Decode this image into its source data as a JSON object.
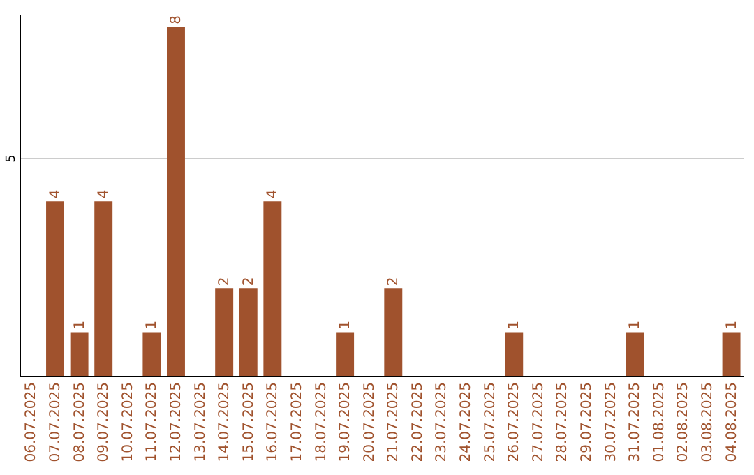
{
  "chart_data": {
    "type": "bar",
    "categories": [
      "06.07.2025",
      "07.07.2025",
      "08.07.2025",
      "09.07.2025",
      "10.07.2025",
      "11.07.2025",
      "12.07.2025",
      "13.07.2025",
      "14.07.2025",
      "15.07.2025",
      "16.07.2025",
      "17.07.2025",
      "18.07.2025",
      "19.07.2025",
      "20.07.2025",
      "21.07.2025",
      "22.07.2025",
      "23.07.2025",
      "24.07.2025",
      "25.07.2025",
      "26.07.2025",
      "27.07.2025",
      "28.07.2025",
      "29.07.2025",
      "30.07.2025",
      "31.07.2025",
      "01.08.2025",
      "02.08.2025",
      "03.08.2025",
      "04.08.2025"
    ],
    "values": [
      0,
      4,
      1,
      4,
      0,
      1,
      8,
      0,
      2,
      2,
      4,
      0,
      0,
      1,
      0,
      2,
      0,
      0,
      0,
      0,
      1,
      0,
      0,
      0,
      0,
      1,
      0,
      0,
      0,
      1
    ],
    "value_labels": [
      null,
      "4",
      "1",
      "4",
      null,
      "1",
      "8",
      null,
      "2",
      "2",
      "4",
      null,
      null,
      "1",
      null,
      "2",
      null,
      null,
      null,
      null,
      "1",
      null,
      null,
      null,
      null,
      "1",
      null,
      null,
      null,
      "1"
    ],
    "color": "#a0522d",
    "ylim": [
      0,
      8.3
    ],
    "yticks": [
      5
    ],
    "grid": "y"
  }
}
